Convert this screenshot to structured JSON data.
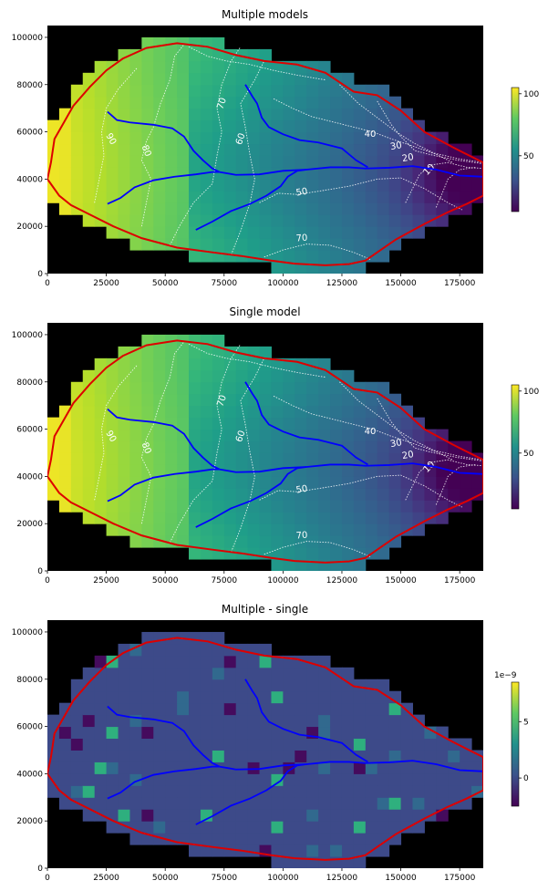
{
  "figure": {
    "background": "#ffffff",
    "mask_color": "#000000",
    "river_color": "#0000ff",
    "boundary_color": "#dd0000"
  },
  "chart_data": [
    {
      "type": "heatmap",
      "title": "Multiple models",
      "xlim": [
        0,
        185000
      ],
      "ylim": [
        0,
        105000
      ],
      "xticks": [
        0,
        25000,
        50000,
        75000,
        100000,
        125000,
        150000,
        175000
      ],
      "yticks": [
        0,
        20000,
        40000,
        60000,
        80000,
        100000
      ],
      "colormap": "viridis",
      "colorbar": {
        "min": 5,
        "max": 105,
        "ticks": [
          50,
          100
        ],
        "offset_label": ""
      },
      "contour_labels": [
        {
          "text": "90",
          "x": 27000,
          "y": 57000,
          "angle": 60
        },
        {
          "text": "80",
          "x": 42000,
          "y": 52000,
          "angle": 70
        },
        {
          "text": "70",
          "x": 74000,
          "y": 72000,
          "angle": -70
        },
        {
          "text": "60",
          "x": 82000,
          "y": 57000,
          "angle": -70
        },
        {
          "text": "40",
          "x": 137000,
          "y": 59000,
          "angle": 0
        },
        {
          "text": "30",
          "x": 148000,
          "y": 54000,
          "angle": -10
        },
        {
          "text": "20",
          "x": 153000,
          "y": 49000,
          "angle": -10
        },
        {
          "text": "10",
          "x": 162000,
          "y": 44000,
          "angle": -45
        },
        {
          "text": "50",
          "x": 108000,
          "y": 34500,
          "angle": -10
        },
        {
          "text": "70",
          "x": 108000,
          "y": 15000,
          "angle": -5
        }
      ]
    },
    {
      "type": "heatmap",
      "title": "Single model",
      "xlim": [
        0,
        185000
      ],
      "ylim": [
        0,
        105000
      ],
      "xticks": [
        0,
        25000,
        50000,
        75000,
        100000,
        125000,
        150000,
        175000
      ],
      "yticks": [
        0,
        20000,
        40000,
        60000,
        80000,
        100000
      ],
      "colormap": "viridis",
      "colorbar": {
        "min": 5,
        "max": 105,
        "ticks": [
          50,
          100
        ],
        "offset_label": ""
      },
      "contour_labels": [
        {
          "text": "90",
          "x": 27000,
          "y": 57000,
          "angle": 60
        },
        {
          "text": "80",
          "x": 42000,
          "y": 52000,
          "angle": 70
        },
        {
          "text": "70",
          "x": 74000,
          "y": 72000,
          "angle": -70
        },
        {
          "text": "60",
          "x": 82000,
          "y": 57000,
          "angle": -70
        },
        {
          "text": "40",
          "x": 137000,
          "y": 59000,
          "angle": 0
        },
        {
          "text": "30",
          "x": 148000,
          "y": 54000,
          "angle": -10
        },
        {
          "text": "20",
          "x": 153000,
          "y": 49000,
          "angle": -10
        },
        {
          "text": "10",
          "x": 162000,
          "y": 44000,
          "angle": -45
        },
        {
          "text": "50",
          "x": 108000,
          "y": 34500,
          "angle": -10
        },
        {
          "text": "70",
          "x": 108000,
          "y": 15000,
          "angle": -5
        }
      ]
    },
    {
      "type": "heatmap",
      "title": "Multiple - single",
      "xlim": [
        0,
        185000
      ],
      "ylim": [
        0,
        105000
      ],
      "xticks": [
        0,
        25000,
        50000,
        75000,
        100000,
        125000,
        150000,
        175000
      ],
      "yticks": [
        0,
        20000,
        40000,
        60000,
        80000,
        100000
      ],
      "colormap": "viridis",
      "colorbar": {
        "min": -2.5,
        "max": 8.5,
        "ticks": [
          0,
          5
        ],
        "offset_label": "1e−9"
      },
      "contour_labels": []
    }
  ],
  "boundary": [
    [
      0,
      40000
    ],
    [
      1500,
      47000
    ],
    [
      3000,
      57000
    ],
    [
      7000,
      64000
    ],
    [
      11000,
      71000
    ],
    [
      18000,
      79000
    ],
    [
      25000,
      86000
    ],
    [
      32000,
      91000
    ],
    [
      42000,
      95500
    ],
    [
      55000,
      97500
    ],
    [
      68000,
      96000
    ],
    [
      80000,
      92500
    ],
    [
      92000,
      90000
    ],
    [
      106000,
      88500
    ],
    [
      118000,
      85000
    ],
    [
      130000,
      77000
    ],
    [
      140000,
      75500
    ],
    [
      150000,
      69000
    ],
    [
      160000,
      60000
    ],
    [
      172000,
      53500
    ],
    [
      185000,
      47000
    ],
    [
      185000,
      33000
    ],
    [
      178000,
      29500
    ],
    [
      170000,
      26000
    ],
    [
      160000,
      21000
    ],
    [
      148000,
      14500
    ],
    [
      140000,
      9000
    ],
    [
      135000,
      5500
    ],
    [
      128000,
      4000
    ],
    [
      118000,
      3500
    ],
    [
      105000,
      4200
    ],
    [
      95000,
      5500
    ],
    [
      82000,
      7500
    ],
    [
      70000,
      9000
    ],
    [
      55000,
      11000
    ],
    [
      40000,
      15000
    ],
    [
      28000,
      20000
    ],
    [
      18000,
      25000
    ],
    [
      10000,
      29000
    ],
    [
      5000,
      33000
    ],
    [
      0,
      40000
    ]
  ],
  "rivers": [
    [
      [
        25500,
        68500
      ],
      [
        29500,
        65000
      ],
      [
        35000,
        64000
      ],
      [
        45000,
        63000
      ],
      [
        53000,
        61500
      ],
      [
        58000,
        58000
      ],
      [
        62000,
        52000
      ],
      [
        66000,
        48000
      ],
      [
        70000,
        44500
      ],
      [
        73000,
        43000
      ]
    ],
    [
      [
        25500,
        29500
      ],
      [
        31000,
        32000
      ],
      [
        37000,
        36500
      ],
      [
        45000,
        39500
      ],
      [
        54000,
        41000
      ],
      [
        63000,
        42000
      ],
      [
        70000,
        43000
      ],
      [
        73000,
        43000
      ]
    ],
    [
      [
        73000,
        43000
      ],
      [
        80000,
        41800
      ],
      [
        90000,
        42000
      ],
      [
        100000,
        43500
      ],
      [
        110000,
        44000
      ],
      [
        120000,
        45000
      ],
      [
        128000,
        45000
      ],
      [
        135000,
        44500
      ],
      [
        145000,
        44800
      ],
      [
        155000,
        45500
      ],
      [
        165000,
        44000
      ],
      [
        175000,
        41500
      ],
      [
        185000,
        41000
      ]
    ],
    [
      [
        84000,
        80000
      ],
      [
        87000,
        75000
      ],
      [
        89000,
        72000
      ],
      [
        91000,
        66000
      ],
      [
        94000,
        62000
      ],
      [
        100000,
        59000
      ],
      [
        107000,
        56500
      ],
      [
        115000,
        55500
      ],
      [
        125000,
        53000
      ],
      [
        131000,
        48000
      ],
      [
        136000,
        45000
      ]
    ],
    [
      [
        63000,
        18500
      ],
      [
        70000,
        22000
      ],
      [
        78000,
        26500
      ],
      [
        86000,
        29500
      ],
      [
        93000,
        33000
      ],
      [
        99000,
        37000
      ],
      [
        102000,
        41000
      ],
      [
        106000,
        43500
      ],
      [
        110000,
        44000
      ]
    ]
  ],
  "contours": [
    [
      [
        20000,
        30000
      ],
      [
        22000,
        40000
      ],
      [
        24000,
        50000
      ],
      [
        23000,
        60000
      ],
      [
        25000,
        70000
      ],
      [
        30000,
        78000
      ],
      [
        38000,
        87000
      ]
    ],
    [
      [
        40000,
        20000
      ],
      [
        42000,
        30000
      ],
      [
        44000,
        40000
      ],
      [
        40000,
        48000
      ],
      [
        42000,
        56000
      ],
      [
        45000,
        62000
      ],
      [
        48000,
        72000
      ],
      [
        52000,
        82000
      ],
      [
        54000,
        92000
      ],
      [
        58000,
        97000
      ]
    ],
    [
      [
        52000,
        12000
      ],
      [
        56000,
        20000
      ],
      [
        62000,
        30000
      ],
      [
        70000,
        38000
      ],
      [
        72000,
        50000
      ],
      [
        74000,
        60000
      ],
      [
        72000,
        70000
      ],
      [
        74000,
        80000
      ],
      [
        78000,
        90000
      ],
      [
        82000,
        96000
      ]
    ],
    [
      [
        78000,
        8000
      ],
      [
        82000,
        18000
      ],
      [
        86000,
        30000
      ],
      [
        88000,
        40000
      ],
      [
        86000,
        50000
      ],
      [
        84000,
        62000
      ],
      [
        82000,
        72000
      ],
      [
        88000,
        82000
      ],
      [
        92000,
        90000
      ]
    ],
    [
      [
        92000,
        7000
      ],
      [
        100000,
        10000
      ],
      [
        110000,
        12500
      ],
      [
        120000,
        12000
      ],
      [
        130000,
        9000
      ],
      [
        137000,
        6000
      ]
    ],
    [
      [
        90000,
        30000
      ],
      [
        98000,
        34000
      ],
      [
        106000,
        33500
      ],
      [
        116000,
        35000
      ],
      [
        128000,
        37000
      ],
      [
        140000,
        40000
      ],
      [
        150000,
        40500
      ],
      [
        160000,
        36000
      ],
      [
        170000,
        30000
      ],
      [
        176000,
        27000
      ]
    ],
    [
      [
        96000,
        74000
      ],
      [
        104000,
        70000
      ],
      [
        112000,
        66500
      ],
      [
        122000,
        64000
      ],
      [
        130000,
        62000
      ],
      [
        138000,
        60000
      ],
      [
        146000,
        57000
      ],
      [
        155000,
        54000
      ],
      [
        165000,
        50500
      ],
      [
        172000,
        47000
      ]
    ],
    [
      [
        124000,
        80000
      ],
      [
        132000,
        72000
      ],
      [
        140000,
        66000
      ],
      [
        148000,
        60000
      ],
      [
        156000,
        55000
      ],
      [
        164000,
        51000
      ],
      [
        175000,
        48500
      ],
      [
        185000,
        47000
      ]
    ],
    [
      [
        140000,
        73000
      ],
      [
        146000,
        63000
      ],
      [
        150000,
        58000
      ],
      [
        156000,
        52000
      ],
      [
        164000,
        50000
      ],
      [
        174000,
        48000
      ],
      [
        185000,
        46500
      ]
    ],
    [
      [
        152000,
        30000
      ],
      [
        156000,
        38000
      ],
      [
        158000,
        42000
      ],
      [
        163000,
        46000
      ],
      [
        170000,
        47000
      ],
      [
        178000,
        45000
      ],
      [
        185000,
        44500
      ]
    ],
    [
      [
        165000,
        28000
      ],
      [
        168000,
        35000
      ],
      [
        170000,
        40000
      ],
      [
        175000,
        44000
      ],
      [
        182000,
        45000
      ]
    ],
    [
      [
        60000,
        96000
      ],
      [
        68000,
        92000
      ],
      [
        76000,
        90000
      ],
      [
        86000,
        88500
      ],
      [
        96000,
        86000
      ],
      [
        106000,
        84000
      ],
      [
        118000,
        82000
      ]
    ]
  ]
}
